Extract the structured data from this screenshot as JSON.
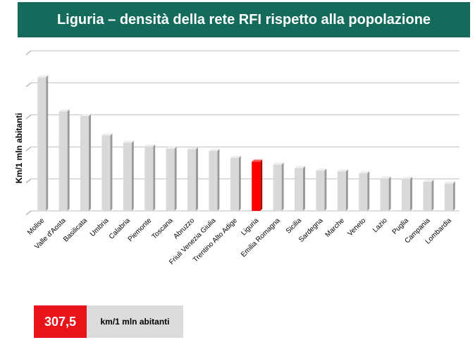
{
  "header": {
    "title": "Liguria – densità della rete RFI rispetto alla popolazione"
  },
  "chart_data": {
    "type": "bar",
    "title": "Liguria – densità della rete RFI rispetto alla popolazione",
    "xlabel": "",
    "ylabel": "Km/1 mln abitanti",
    "ylim": [
      0,
      1000
    ],
    "grid": true,
    "categories": [
      "Molise",
      "Valle d'Aosta",
      "Basilicata",
      "Umbria",
      "Calabria",
      "Piemonte",
      "Toscana",
      "Abruzzo",
      "Friuli Venezia Giulia",
      "Trentino Alto Adige",
      "Liguria",
      "Emilia Romagna",
      "Sicilia",
      "Sardegna",
      "Marche",
      "Veneto",
      "Lazio",
      "Puglia",
      "Campania",
      "Lombardia"
    ],
    "values": [
      834,
      621,
      592,
      471,
      425,
      402,
      388,
      385,
      374,
      331,
      307.5,
      289,
      267,
      251,
      246,
      235,
      202,
      200,
      182,
      171
    ],
    "highlight": "Liguria",
    "colors": {
      "bar": "#d9d9d9",
      "bar_side": "#9a9a9a",
      "highlight": "#ff0000",
      "highlight_side": "#b00000"
    }
  },
  "callout": {
    "value": "307,5",
    "unit": "km/1 mln abitanti"
  }
}
